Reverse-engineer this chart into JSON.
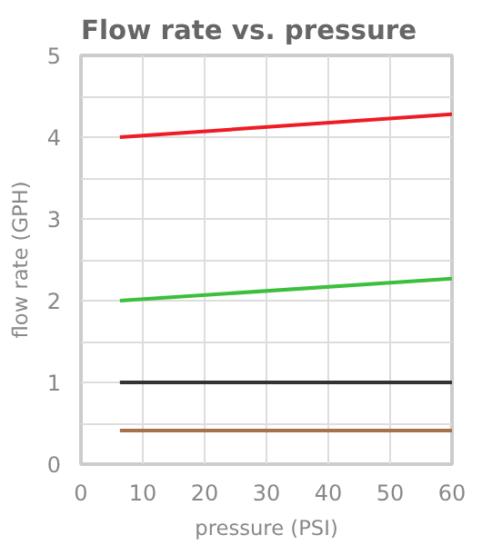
{
  "chart_data": {
    "type": "line",
    "title": "Flow rate vs. pressure",
    "xlabel": "pressure (PSI)",
    "ylabel": "flow rate (GPH)",
    "xlim": [
      0,
      60
    ],
    "ylim": [
      0,
      5
    ],
    "xticks": [
      0,
      10,
      20,
      30,
      40,
      50,
      60
    ],
    "yticks": [
      0,
      {
        "value": 0.5,
        "label": null
      },
      1,
      {
        "value": 1.5,
        "label": null
      },
      2,
      {
        "value": 2.5,
        "label": null
      },
      3,
      {
        "value": 3.5,
        "label": null
      },
      4,
      {
        "value": 4.5,
        "label": null
      },
      5
    ],
    "grid": true,
    "line_style": "solid",
    "marker": "none",
    "x": [
      6.3,
      60
    ],
    "series": [
      {
        "color": "#ee1c25",
        "values": [
          4.0,
          4.28
        ]
      },
      {
        "color": "#3cbf3c",
        "values": [
          2.0,
          2.27
        ]
      },
      {
        "color": "#333333",
        "values": [
          1.0,
          1.0
        ]
      },
      {
        "color": "#a8714a",
        "values": [
          0.41,
          0.41
        ]
      }
    ]
  }
}
